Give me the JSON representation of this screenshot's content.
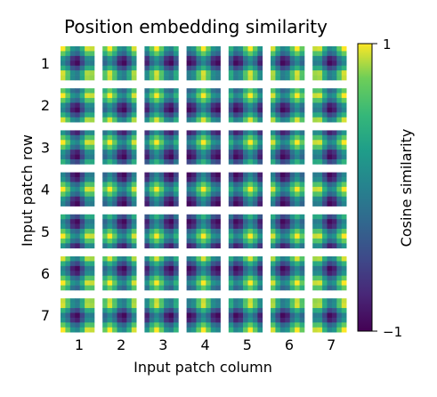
{
  "chart_data": {
    "type": "heatmap",
    "title": "Position embedding similarity",
    "xlabel": "Input patch column",
    "ylabel": "Input patch row",
    "grid_rows": 7,
    "grid_cols": 7,
    "tile_cells": 7,
    "row_labels": [
      "1",
      "2",
      "3",
      "4",
      "5",
      "6",
      "7"
    ],
    "col_labels": [
      "1",
      "2",
      "3",
      "4",
      "5",
      "6",
      "7"
    ],
    "colorbar": {
      "label": "Cosine similarity",
      "min": -1,
      "max": 1,
      "tick_labels": [
        "1",
        "−1"
      ],
      "colormap": "viridis"
    },
    "grid": false
  }
}
